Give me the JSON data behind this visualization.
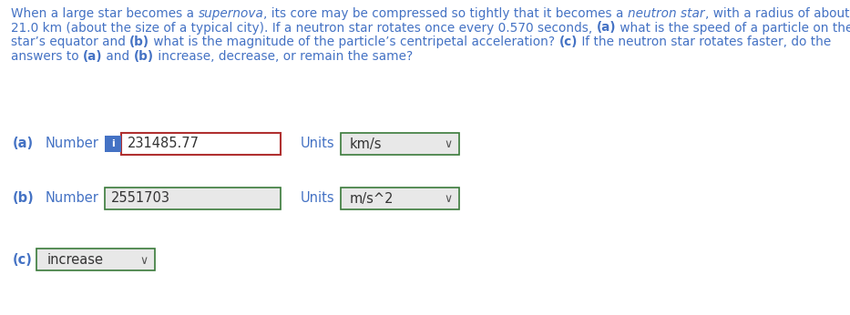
{
  "background_color": "#ffffff",
  "text_color": "#4472c4",
  "label_color": "#333333",
  "line1_parts": [
    [
      "When a large star becomes a ",
      "normal"
    ],
    [
      "supernova",
      "italic"
    ],
    [
      ", its core may be compressed so tightly that it becomes a ",
      "normal"
    ],
    [
      "neutron star",
      "italic"
    ],
    [
      ", with a radius of about",
      "normal"
    ]
  ],
  "line2_parts": [
    [
      "21.0 km (about the size of a typical city). If a neutron star rotates once every 0.570 seconds, ",
      "normal"
    ],
    [
      "(a)",
      "bold"
    ],
    [
      " what is the speed of a particle on the",
      "normal"
    ]
  ],
  "line3_parts": [
    [
      "star’s equator and ",
      "normal"
    ],
    [
      "(b)",
      "bold"
    ],
    [
      " what is the magnitude of the particle’s centripetal acceleration? ",
      "normal"
    ],
    [
      "(c)",
      "bold"
    ],
    [
      " If the neutron star rotates faster, do the",
      "normal"
    ]
  ],
  "line4_parts": [
    [
      "answers to ",
      "normal"
    ],
    [
      "(a)",
      "bold"
    ],
    [
      " and ",
      "normal"
    ],
    [
      "(b)",
      "bold"
    ],
    [
      " increase, decrease, or remain the same?",
      "normal"
    ]
  ],
  "row_a_label": "(a)",
  "row_a_number_label": "Number",
  "row_a_value": "231485.77",
  "row_a_units_label": "Units",
  "row_a_units_value": "km/s",
  "row_b_label": "(b)",
  "row_b_number_label": "Number",
  "row_b_value": "2551703",
  "row_b_units_label": "Units",
  "row_b_units_value": "m/s^2",
  "row_c_label": "(c)",
  "row_c_value": "increase",
  "info_icon_color": "#4472c4",
  "info_icon_text_color": "#ffffff",
  "input_border_a": "#b03030",
  "input_border_b": "#3a7a3a",
  "dropdown_border": "#3a7a3a",
  "input_bg_a": "#ffffff",
  "input_bg_b": "#e8e8e8",
  "dropdown_bg": "#e8e8e8",
  "font_size_para": 9.8,
  "font_size_ui": 10.5
}
